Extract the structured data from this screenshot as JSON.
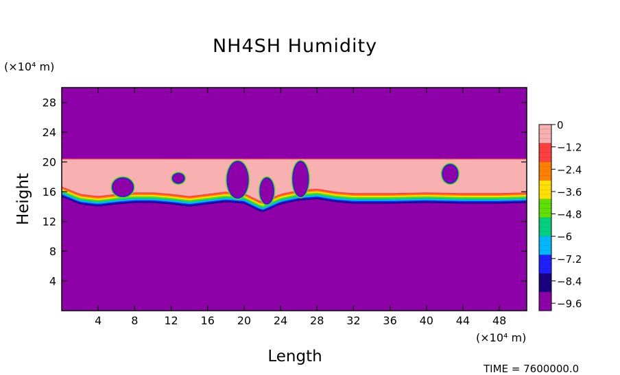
{
  "chart_data": {
    "type": "heatmap",
    "title": "NH4SH Humidity",
    "xlabel": "Length",
    "ylabel": "Height",
    "x_unit": "(×10⁴ m)",
    "y_unit": "(×10⁴ m)",
    "xlim": [
      0,
      51
    ],
    "ylim": [
      0,
      30
    ],
    "x_ticks": [
      4,
      8,
      12,
      16,
      20,
      24,
      28,
      32,
      36,
      40,
      44,
      48
    ],
    "y_ticks": [
      4,
      8,
      12,
      16,
      20,
      24,
      28
    ],
    "colorbar": {
      "range": [
        -10,
        0
      ],
      "labels": [
        0,
        -1.2,
        -2.4,
        -3.6,
        -4.8,
        -6,
        -7.2,
        -8.4,
        -9.6
      ],
      "colors": [
        "#f8b0b0",
        "#ff4040",
        "#ff8000",
        "#ffe000",
        "#60e000",
        "#00d080",
        "#00b8ff",
        "#2020ff",
        "#1a0080",
        "#8e00a8"
      ]
    },
    "background_value": -10,
    "layer": {
      "top_height": 20.4,
      "base_height": [
        [
          0,
          15.3
        ],
        [
          2,
          14.3
        ],
        [
          4,
          14.0
        ],
        [
          6,
          14.3
        ],
        [
          8,
          14.5
        ],
        [
          10,
          14.5
        ],
        [
          12,
          14.3
        ],
        [
          14,
          14.0
        ],
        [
          16,
          14.3
        ],
        [
          18,
          14.6
        ],
        [
          20,
          14.4
        ],
        [
          22,
          13.2
        ],
        [
          24,
          14.3
        ],
        [
          26,
          14.8
        ],
        [
          28,
          15.0
        ],
        [
          30,
          14.6
        ],
        [
          32,
          14.4
        ],
        [
          36,
          14.4
        ],
        [
          40,
          14.5
        ],
        [
          44,
          14.4
        ],
        [
          48,
          14.4
        ],
        [
          51,
          14.5
        ]
      ],
      "dry_pockets": [
        {
          "x": [
            5.6,
            7.8
          ],
          "y": [
            15.4,
            17.8
          ]
        },
        {
          "x": [
            18.2,
            20.4
          ],
          "y": [
            15.2,
            20.0
          ]
        },
        {
          "x": [
            21.8,
            23.2
          ],
          "y": [
            14.4,
            17.8
          ]
        },
        {
          "x": [
            25.4,
            27.0
          ],
          "y": [
            15.4,
            20.0
          ]
        },
        {
          "x": [
            41.8,
            43.4
          ],
          "y": [
            17.2,
            19.6
          ]
        },
        {
          "x": [
            12.2,
            13.4
          ],
          "y": [
            17.2,
            18.4
          ]
        }
      ]
    },
    "annotation": "TIME = 7600000.0"
  }
}
